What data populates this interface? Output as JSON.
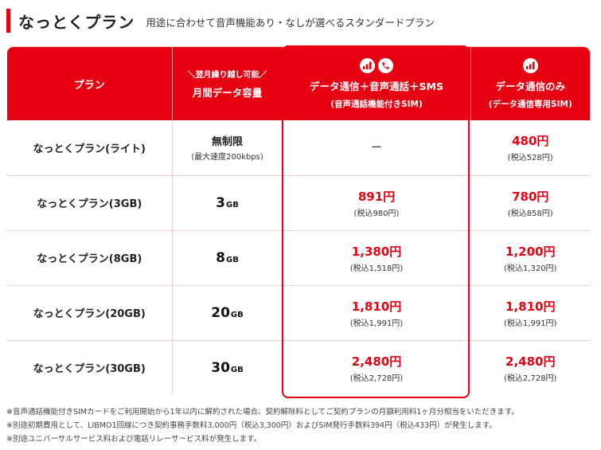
{
  "header": {
    "title": "なっとくプラン",
    "subtitle": "用途に合わせて音声機能あり・なしが選べるスタンダードプラン"
  },
  "table": {
    "headers": {
      "plan": "プラン",
      "capacity_note": "＼翌月繰り越し可能／",
      "capacity": "月間データ容量",
      "voice_label": "データ通信＋音声通話＋SMS",
      "voice_sub": "(音声通話機能付きSIM)",
      "data_label": "データ通信のみ",
      "data_sub": "(データ通信専用SIM)"
    },
    "rows": [
      {
        "plan": "なっとくプラン(ライト)",
        "cap_main": "無制限",
        "cap_sub": "(最大速度200kbps)",
        "voice_dash": "ー",
        "data_price": "480円",
        "data_tax": "(税込528円)"
      },
      {
        "plan": "なっとくプラン(3GB)",
        "cap_num": "3",
        "cap_unit": "GB",
        "voice_price": "891円",
        "voice_tax": "(税込980円)",
        "data_price": "780円",
        "data_tax": "(税込858円)"
      },
      {
        "plan": "なっとくプラン(8GB)",
        "cap_num": "8",
        "cap_unit": "GB",
        "voice_price": "1,380円",
        "voice_tax": "(税込1,518円)",
        "data_price": "1,200円",
        "data_tax": "(税込1,320円)"
      },
      {
        "plan": "なっとくプラン(20GB)",
        "cap_num": "20",
        "cap_unit": "GB",
        "voice_price": "1,810円",
        "voice_tax": "(税込1,991円)",
        "data_price": "1,810円",
        "data_tax": "(税込1,991円)"
      },
      {
        "plan": "なっとくプラン(30GB)",
        "cap_num": "30",
        "cap_unit": "GB",
        "voice_price": "2,480円",
        "voice_tax": "(税込2,728円)",
        "data_price": "2,480円",
        "data_tax": "(税込2,728円)"
      }
    ]
  },
  "icons": {
    "voice_column": [
      "signal-bars-icon",
      "phone-icon"
    ],
    "data_column": [
      "signal-bars-icon"
    ]
  },
  "colors": {
    "brand_red": "#e60012",
    "panel_pink": "#fbe4e4"
  },
  "notes": [
    "※音声通話機能付きSIMカードをご利用開始から1年以内に解約された場合、契約解除料としてご契約プランの月額利用料1ヶ月分相当をいただきます。",
    "※別途初期費用として、LIBMO1回線につき契約事務手数料3,000円（税込3,300円）およびSIM発行手数料394円（税込433円）が発生します。",
    "※別途ユニバーサルサービス料および電話リレーサービス料が発生します。"
  ]
}
